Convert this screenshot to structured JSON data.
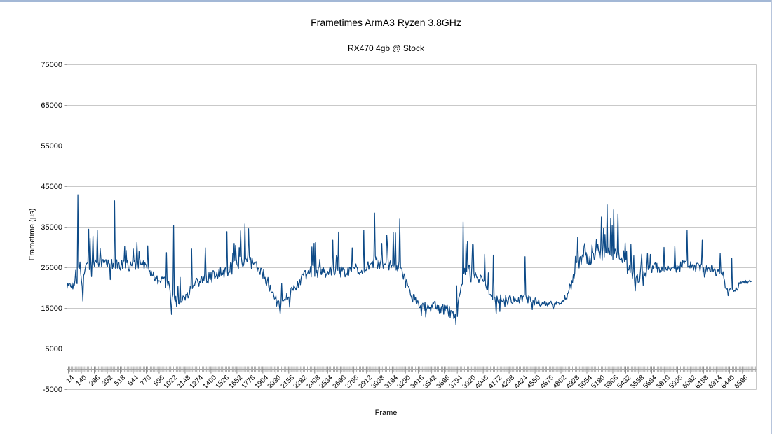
{
  "chart_data": {
    "type": "line",
    "title": "Frametimes ArmA3 Ryzen 3.8GHz",
    "subtitle": "RX470 4gb @ Stock",
    "xlabel": "Frame",
    "ylabel": "Frametime (µs)",
    "legend": "none",
    "grid": "horizontal",
    "colors": {
      "series": "#0d4a87",
      "gridline": "#c9c9c9",
      "axis": "#9e9e9e",
      "minor_tick": "#a9a9a9",
      "text": "#000000"
    },
    "y_axis": {
      "min": -5000,
      "max": 75000,
      "tick_step": 10000,
      "tick_labels": [
        "75000",
        "65000",
        "55000",
        "45000",
        "35000",
        "25000",
        "15000",
        "5000",
        "-5000"
      ],
      "tick_values": [
        75000,
        65000,
        55000,
        45000,
        35000,
        25000,
        15000,
        5000,
        -5000
      ],
      "axis_crosses_at": 0
    },
    "x_axis": {
      "min": 0,
      "max": 6700,
      "minor_tick_interval": 14,
      "tick_labels": [
        14,
        140,
        266,
        392,
        518,
        644,
        770,
        896,
        1022,
        1148,
        1274,
        1400,
        1526,
        1652,
        1778,
        1904,
        2030,
        2156,
        2282,
        2408,
        2534,
        2660,
        2786,
        2912,
        3038,
        3164,
        3290,
        3416,
        3542,
        3668,
        3794,
        3920,
        4046,
        4172,
        4298,
        4424,
        4550,
        4676,
        4802,
        4928,
        5054,
        5180,
        5306,
        5432,
        5558,
        5684,
        5810,
        5936,
        6062,
        6188,
        6314,
        6440,
        6566
      ]
    },
    "series": [
      {
        "name": "Frametime",
        "color": "#0d4a87",
        "frame_start": 1,
        "frame_end": 6660,
        "sample_step": 7,
        "seed": 7,
        "trend": [
          [
            1,
            20800
          ],
          [
            70,
            20400
          ],
          [
            98,
            21800
          ],
          [
            105,
            24000
          ],
          [
            125,
            25500
          ],
          [
            150,
            18700
          ],
          [
            165,
            22500
          ],
          [
            185,
            25800
          ],
          [
            230,
            26200
          ],
          [
            320,
            26300
          ],
          [
            470,
            25600
          ],
          [
            560,
            25400
          ],
          [
            700,
            25900
          ],
          [
            800,
            24800
          ],
          [
            840,
            22600
          ],
          [
            900,
            22300
          ],
          [
            960,
            22000
          ],
          [
            1000,
            21000
          ],
          [
            1015,
            15500
          ],
          [
            1030,
            19000
          ],
          [
            1045,
            17800
          ],
          [
            1075,
            16800
          ],
          [
            1110,
            16600
          ],
          [
            1150,
            17500
          ],
          [
            1185,
            19200
          ],
          [
            1240,
            21000
          ],
          [
            1330,
            21900
          ],
          [
            1450,
            23200
          ],
          [
            1560,
            24300
          ],
          [
            1640,
            25600
          ],
          [
            1700,
            26400
          ],
          [
            1780,
            26600
          ],
          [
            1850,
            25600
          ],
          [
            1910,
            23200
          ],
          [
            1960,
            21000
          ],
          [
            2010,
            17600
          ],
          [
            2060,
            16000
          ],
          [
            2110,
            16800
          ],
          [
            2160,
            18500
          ],
          [
            2210,
            20300
          ],
          [
            2260,
            21300
          ],
          [
            2320,
            23200
          ],
          [
            2390,
            24200
          ],
          [
            2480,
            23900
          ],
          [
            2570,
            24300
          ],
          [
            2660,
            24100
          ],
          [
            2750,
            24300
          ],
          [
            2840,
            24800
          ],
          [
            2920,
            25100
          ],
          [
            2990,
            26500
          ],
          [
            3040,
            25900
          ],
          [
            3130,
            25400
          ],
          [
            3200,
            25600
          ],
          [
            3240,
            25000
          ],
          [
            3290,
            22500
          ],
          [
            3330,
            19500
          ],
          [
            3380,
            16800
          ],
          [
            3450,
            15400
          ],
          [
            3550,
            15600
          ],
          [
            3650,
            15000
          ],
          [
            3740,
            13800
          ],
          [
            3790,
            13200
          ],
          [
            3815,
            17500
          ],
          [
            3840,
            21500
          ],
          [
            3860,
            24200
          ],
          [
            3930,
            24300
          ],
          [
            3990,
            22800
          ],
          [
            4050,
            21200
          ],
          [
            4110,
            19000
          ],
          [
            4170,
            17400
          ],
          [
            4260,
            17600
          ],
          [
            4350,
            17100
          ],
          [
            4440,
            17400
          ],
          [
            4520,
            17000
          ],
          [
            4600,
            16300
          ],
          [
            4700,
            16000
          ],
          [
            4800,
            16400
          ],
          [
            4860,
            18000
          ],
          [
            4910,
            21500
          ],
          [
            4950,
            25200
          ],
          [
            5000,
            27200
          ],
          [
            5080,
            27300
          ],
          [
            5160,
            27800
          ],
          [
            5250,
            28800
          ],
          [
            5340,
            28000
          ],
          [
            5400,
            26800
          ],
          [
            5450,
            25000
          ],
          [
            5510,
            22900
          ],
          [
            5570,
            22800
          ],
          [
            5630,
            24000
          ],
          [
            5700,
            25200
          ],
          [
            5820,
            25100
          ],
          [
            5930,
            25300
          ],
          [
            6020,
            25600
          ],
          [
            6120,
            25100
          ],
          [
            6220,
            24500
          ],
          [
            6320,
            24100
          ],
          [
            6385,
            23200
          ],
          [
            6398,
            20200
          ],
          [
            6420,
            19400
          ],
          [
            6480,
            19400
          ],
          [
            6520,
            19800
          ],
          [
            6535,
            21200
          ],
          [
            6600,
            21500
          ],
          [
            6660,
            21600
          ]
        ],
        "noise_amp": [
          [
            1,
            900
          ],
          [
            90,
            1100
          ],
          [
            130,
            1800
          ],
          [
            300,
            1500
          ],
          [
            800,
            1500
          ],
          [
            1000,
            1300
          ],
          [
            1100,
            1000
          ],
          [
            1200,
            1400
          ],
          [
            1500,
            1600
          ],
          [
            1800,
            1700
          ],
          [
            1950,
            1400
          ],
          [
            2100,
            1300
          ],
          [
            2250,
            1300
          ],
          [
            2400,
            1500
          ],
          [
            3000,
            1500
          ],
          [
            3250,
            1400
          ],
          [
            3400,
            1400
          ],
          [
            3700,
            1400
          ],
          [
            3850,
            1500
          ],
          [
            4100,
            1300
          ],
          [
            4300,
            1100
          ],
          [
            4550,
            1000
          ],
          [
            4650,
            750
          ],
          [
            4820,
            800
          ],
          [
            4950,
            1700
          ],
          [
            5300,
            1700
          ],
          [
            5480,
            1500
          ],
          [
            5700,
            1400
          ],
          [
            6100,
            1400
          ],
          [
            6350,
            1200
          ],
          [
            6410,
            600
          ],
          [
            6500,
            600
          ],
          [
            6540,
            450
          ],
          [
            6660,
            450
          ]
        ],
        "needle_probability": [
          [
            1,
            0.02
          ],
          [
            120,
            0.07
          ],
          [
            900,
            0.05
          ],
          [
            1050,
            0.03
          ],
          [
            1200,
            0.05
          ],
          [
            1500,
            0.07
          ],
          [
            1850,
            0.05
          ],
          [
            2050,
            0.03
          ],
          [
            2300,
            0.06
          ],
          [
            3250,
            0.05
          ],
          [
            3400,
            0.04
          ],
          [
            3800,
            0.04
          ],
          [
            3900,
            0.05
          ],
          [
            4150,
            0.04
          ],
          [
            4600,
            0.02
          ],
          [
            4800,
            0.03
          ],
          [
            4950,
            0.08
          ],
          [
            5450,
            0.07
          ],
          [
            6350,
            0.03
          ],
          [
            6420,
            0.02
          ],
          [
            6660,
            0.0
          ]
        ],
        "needle_amp": [
          [
            1,
            4000
          ],
          [
            150,
            5200
          ],
          [
            900,
            5500
          ],
          [
            1200,
            5200
          ],
          [
            1900,
            4500
          ],
          [
            2300,
            4600
          ],
          [
            3300,
            5500
          ],
          [
            3450,
            7000
          ],
          [
            3800,
            7500
          ],
          [
            3900,
            4500
          ],
          [
            4150,
            8000
          ],
          [
            4600,
            6000
          ],
          [
            4800,
            4500
          ],
          [
            4950,
            4200
          ],
          [
            5250,
            5200
          ],
          [
            5600,
            4300
          ],
          [
            6100,
            4400
          ],
          [
            6400,
            5500
          ],
          [
            6600,
            1200
          ]
        ],
        "down_needle_probability": 0.015,
        "spikes": [
          [
            105,
            43000
          ],
          [
            210,
            34500
          ],
          [
            252,
            32800
          ],
          [
            292,
            34200
          ],
          [
            462,
            41500
          ],
          [
            560,
            30200
          ],
          [
            682,
            31200
          ],
          [
            782,
            30400
          ],
          [
            1035,
            35400
          ],
          [
            1215,
            29600
          ],
          [
            1345,
            29900
          ],
          [
            1557,
            33900
          ],
          [
            1622,
            31000
          ],
          [
            1685,
            34100
          ],
          [
            1733,
            35800
          ],
          [
            1762,
            34600
          ],
          [
            2378,
            30100
          ],
          [
            2583,
            31800
          ],
          [
            2639,
            33800
          ],
          [
            2772,
            29900
          ],
          [
            2883,
            34300
          ],
          [
            2988,
            38500
          ],
          [
            3063,
            31000
          ],
          [
            3235,
            37000
          ],
          [
            3852,
            36300
          ],
          [
            4062,
            28300
          ],
          [
            4144,
            28100
          ],
          [
            4452,
            27700
          ],
          [
            4963,
            32500
          ],
          [
            5033,
            31000
          ],
          [
            5103,
            30600
          ],
          [
            5143,
            31900
          ],
          [
            5194,
            37500
          ],
          [
            5251,
            40500
          ],
          [
            5285,
            37200
          ],
          [
            5313,
            39300
          ],
          [
            5357,
            38300
          ],
          [
            5423,
            31100
          ],
          [
            5483,
            30700
          ],
          [
            5644,
            28600
          ],
          [
            5805,
            30000
          ],
          [
            5912,
            30300
          ],
          [
            6026,
            34200
          ],
          [
            6178,
            31800
          ],
          [
            6462,
            27300
          ]
        ],
        "dips": [
          [
            152,
            16800
          ],
          [
            1013,
            13500
          ],
          [
            1068,
            15400
          ],
          [
            2072,
            13700
          ],
          [
            3445,
            13200
          ],
          [
            3778,
            11000
          ],
          [
            4210,
            14200
          ],
          [
            4725,
            14800
          ],
          [
            5522,
            19300
          ],
          [
            6430,
            18100
          ]
        ]
      }
    ]
  }
}
